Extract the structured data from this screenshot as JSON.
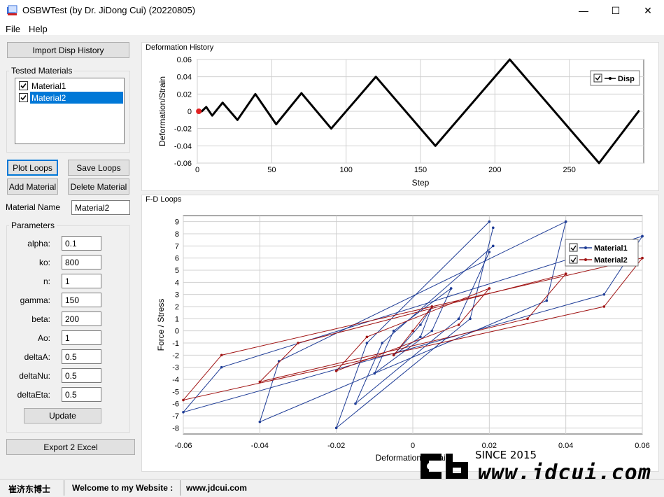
{
  "window": {
    "title": "OSBWTest (by Dr. JiDong Cui) (20220805)",
    "minimize": "—",
    "maximize": "☐",
    "close": "✕"
  },
  "menu": {
    "items": [
      "File",
      "Help"
    ]
  },
  "left": {
    "import_button": "Import Disp History",
    "tested_materials_label": "Tested Materials",
    "materials": [
      {
        "name": "Material1",
        "checked": true,
        "selected": false
      },
      {
        "name": "Material2",
        "checked": true,
        "selected": true
      }
    ],
    "plot_loops": "Plot Loops",
    "save_loops": "Save Loops",
    "add_material": "Add Material",
    "delete_material": "Delete Material",
    "material_name_label": "Material Name",
    "material_name_value": "Material2",
    "parameters_label": "Parameters",
    "parameters": [
      {
        "label": "alpha:",
        "value": "0.1"
      },
      {
        "label": "ko:",
        "value": "800"
      },
      {
        "label": "n:",
        "value": "1"
      },
      {
        "label": "gamma:",
        "value": "150"
      },
      {
        "label": "beta:",
        "value": "200"
      },
      {
        "label": "Ao:",
        "value": "1"
      },
      {
        "label": "deltaA:",
        "value": "0.5"
      },
      {
        "label": "deltaNu:",
        "value": "0.5"
      },
      {
        "label": "deltaEta:",
        "value": "0.5"
      }
    ],
    "update_button": "Update",
    "export_button": "Export 2 Excel"
  },
  "deformation_panel": {
    "title": "Deformation History"
  },
  "fd_panel": {
    "title": "F-D Loops"
  },
  "watermark": {
    "since": "SINCE 2015",
    "site": "www.jdcui.com"
  },
  "status": {
    "author": "崔济东博士",
    "welcome": "Welcome to my Website :",
    "url": "www.jdcui.com"
  },
  "colors": {
    "material1": "#1e3c96",
    "material2": "#a01414",
    "disp": "#000000",
    "selection": "#0078d7"
  },
  "chart_data": [
    {
      "type": "line",
      "ylabel": "Deformation/Strain",
      "xlabel": "Step",
      "xlim": [
        0,
        300
      ],
      "ylim": [
        -0.06,
        0.06
      ],
      "xticks": [
        0,
        50,
        100,
        150,
        200,
        250
      ],
      "xtick_labels": [
        "0",
        "50",
        "100",
        "150",
        "200",
        "250"
      ],
      "yticks": [
        0.06,
        0.04,
        0.02,
        0,
        -0.02,
        -0.04,
        -0.06
      ],
      "ytick_labels": [
        "0.06",
        "0.04",
        "0.02",
        "0",
        "-0.02",
        "-0.04",
        "-0.06"
      ],
      "legend_position": "top-right",
      "series": [
        {
          "name": "Disp",
          "color": "#000000",
          "x": [
            0,
            3,
            6,
            10,
            17,
            27,
            39,
            53,
            70,
            90,
            120,
            160,
            210,
            270,
            297
          ],
          "y": [
            0,
            0,
            0.005,
            -0.005,
            0.01,
            -0.01,
            0.02,
            -0.015,
            0.021,
            -0.02,
            0.04,
            -0.04,
            0.06,
            -0.06,
            0.001
          ]
        }
      ],
      "marker": {
        "x": 1,
        "y": 0
      }
    },
    {
      "type": "line",
      "ylabel": "Force  /  Stress",
      "xlabel": "Deformation / Strain",
      "xlim": [
        -0.06,
        0.06
      ],
      "ylim": [
        -8.5,
        9.5
      ],
      "xticks": [
        -0.06,
        -0.04,
        -0.02,
        0,
        0.02,
        0.04,
        0.06
      ],
      "xtick_labels": [
        "-0.06",
        "-0.04",
        "-0.02",
        "0",
        "0.02",
        "0.04",
        "0.06"
      ],
      "yticks": [
        9,
        8,
        7,
        6,
        5,
        4,
        3,
        2,
        1,
        0,
        -1,
        -2,
        -3,
        -4,
        -5,
        -6,
        -7,
        -8
      ],
      "ytick_labels": [
        "9",
        "8",
        "7",
        "6",
        "5",
        "4",
        "3",
        "2",
        "1",
        "0",
        "-1",
        "-2",
        "-3",
        "-4",
        "-5",
        "-6",
        "-7",
        "-8"
      ],
      "legend_position": "top-right",
      "series": [
        {
          "name": "Material1",
          "color": "#1e3c96",
          "loops": [
            {
              "x": [
                0.005,
                0.002,
                -0.005,
                0.002,
                0.005
              ],
              "y": [
                2.0,
                -0.5,
                -2.0,
                0.5,
                2.0
              ]
            },
            {
              "x": [
                0.01,
                0.005,
                -0.01,
                -0.005,
                0.01
              ],
              "y": [
                3.5,
                0.0,
                -3.5,
                0.0,
                3.5
              ]
            },
            {
              "x": [
                0.02,
                0.012,
                -0.015,
                -0.008,
                0.021
              ],
              "y": [
                6.5,
                1.0,
                -6.0,
                -1.0,
                7.0
              ]
            },
            {
              "x": [
                0.021,
                0.015,
                -0.02,
                -0.012,
                0.02
              ],
              "y": [
                8.5,
                1.0,
                -8.0,
                -1.0,
                9.0
              ]
            },
            {
              "x": [
                0.04,
                0.035,
                -0.04,
                -0.035,
                0.04
              ],
              "y": [
                9.0,
                2.5,
                -7.5,
                -2.5,
                9.0
              ]
            },
            {
              "x": [
                0.06,
                0.05,
                -0.06,
                -0.05,
                0.06
              ],
              "y": [
                7.8,
                3.0,
                -6.7,
                -3.0,
                7.8
              ]
            }
          ]
        },
        {
          "name": "Material2",
          "color": "#a01414",
          "loops": [
            {
              "x": [
                0.005,
                0.0,
                -0.005,
                0.0,
                0.005
              ],
              "y": [
                2.0,
                0.0,
                -2.0,
                0.0,
                2.0
              ]
            },
            {
              "x": [
                0.02,
                0.012,
                -0.02,
                -0.012,
                0.02
              ],
              "y": [
                3.5,
                0.5,
                -3.3,
                -0.5,
                3.5
              ]
            },
            {
              "x": [
                0.04,
                0.03,
                -0.04,
                -0.03,
                0.04
              ],
              "y": [
                4.7,
                1.0,
                -4.2,
                -1.0,
                4.7
              ]
            },
            {
              "x": [
                0.06,
                0.05,
                -0.06,
                -0.05,
                0.06
              ],
              "y": [
                6.0,
                2.0,
                -5.7,
                -2.0,
                6.0
              ]
            }
          ]
        }
      ]
    }
  ]
}
